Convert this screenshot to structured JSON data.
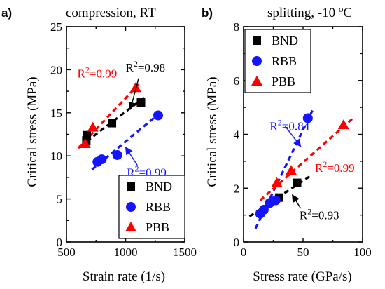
{
  "chart_data": [
    {
      "type": "scatter",
      "panel_label": "a)",
      "title": "compression, RT",
      "xlabel": "Strain rate (1/s)",
      "ylabel": "Critical stress (MPa)",
      "xlim": [
        500,
        1500
      ],
      "ylim": [
        0,
        25
      ],
      "xticks": [
        "500",
        "1000",
        "1500"
      ],
      "yticks": [
        "0",
        "5",
        "10",
        "15",
        "20",
        "25"
      ],
      "legend_position": "bottom-right",
      "series": [
        {
          "name": "BND",
          "marker": "square",
          "color": "#000000",
          "x": [
            668,
            672,
            885,
            1130
          ],
          "y": [
            11.8,
            12.4,
            13.8,
            16.2
          ],
          "fit": {
            "x": [
              615,
              1160
            ],
            "y": [
              11.1,
              16.8
            ]
          }
        },
        {
          "name": "RBB",
          "marker": "circle",
          "color": "#1414ff",
          "x": [
            762,
            798,
            930,
            1275
          ],
          "y": [
            9.3,
            9.6,
            10.1,
            14.7
          ],
          "fit": {
            "x": [
              715,
              1300
            ],
            "y": [
              8.4,
              15.1
            ]
          }
        },
        {
          "name": "PBB",
          "marker": "triangle",
          "color": "#ff0000",
          "x": [
            658,
            723,
            1085
          ],
          "y": [
            11.4,
            13.3,
            17.9
          ],
          "fit": {
            "x": [
              600,
              1110
            ],
            "y": [
              10.9,
              18.3
            ]
          }
        }
      ],
      "annotations": [
        {
          "text_base": "R",
          "text_sup": "2",
          "text_tail": "=0.98",
          "color": "#000000",
          "x": 1000,
          "y": 19.8
        },
        {
          "text_base": "R",
          "text_sup": "2",
          "text_tail": "=0.99",
          "color": "#ff0000",
          "x": 592,
          "y": 19.1
        },
        {
          "text_base": "R",
          "text_sup": "2",
          "text_tail": "=0.99",
          "color": "#1414ff",
          "x": 1010,
          "y": 7.6
        }
      ],
      "arrows": [
        {
          "color": "#000000",
          "from": [
            1110,
            19.0
          ],
          "to": [
            1040,
            15.4
          ]
        },
        {
          "color": "#1414ff",
          "from": [
            1100,
            8.9
          ],
          "to": [
            1000,
            11.0
          ]
        }
      ]
    },
    {
      "type": "scatter",
      "panel_label": "b)",
      "title_base": "splitting, -10 ",
      "title_sup": "o",
      "title_tail": "C",
      "xlabel": "Stress rate (GPa/s)",
      "ylabel": "Critical stress (MPa)",
      "xlim": [
        0,
        100
      ],
      "ylim": [
        0,
        8
      ],
      "xticks": [
        "0",
        "50",
        "100"
      ],
      "yticks": [
        "0",
        "2",
        "4",
        "6",
        "8"
      ],
      "legend_position": "top-left",
      "series": [
        {
          "name": "BND",
          "marker": "square",
          "color": "#000000",
          "x": [
            30,
            45
          ],
          "y": [
            1.65,
            2.2
          ],
          "fit": {
            "x": [
              5,
              56
            ],
            "y": [
              0.95,
              2.45
            ]
          }
        },
        {
          "name": "RBB",
          "marker": "circle",
          "color": "#1414ff",
          "x": [
            14,
            17,
            22,
            27,
            54
          ],
          "y": [
            1.05,
            1.2,
            1.45,
            1.55,
            4.6
          ],
          "fit": {
            "x": [
              10,
              58
            ],
            "y": [
              0.5,
              4.9
            ]
          }
        },
        {
          "name": "PBB",
          "marker": "triangle",
          "color": "#ff0000",
          "x": [
            28,
            40,
            84
          ],
          "y": [
            2.2,
            2.65,
            4.35
          ],
          "fit": {
            "x": [
              14,
              92
            ],
            "y": [
              1.55,
              4.6
            ]
          }
        }
      ],
      "annotations": [
        {
          "text_base": "R",
          "text_sup": "2",
          "text_tail": "=0.84",
          "color": "#1414ff",
          "x": 22,
          "y": 4.15
        },
        {
          "text_base": "R",
          "text_sup": "2",
          "text_tail": "=0.99",
          "color": "#ff0000",
          "x": 60,
          "y": 2.6
        },
        {
          "text_base": "R",
          "text_sup": "2",
          "text_tail": "=0.93",
          "color": "#000000",
          "x": 47,
          "y": 0.85
        }
      ],
      "arrows": [
        {
          "color": "#1414ff",
          "from": [
            35,
            4.3
          ],
          "to": [
            48,
            3.55
          ]
        },
        {
          "color": "#000000",
          "from": [
            48,
            1.25
          ],
          "to": [
            41,
            1.75
          ]
        }
      ]
    }
  ]
}
